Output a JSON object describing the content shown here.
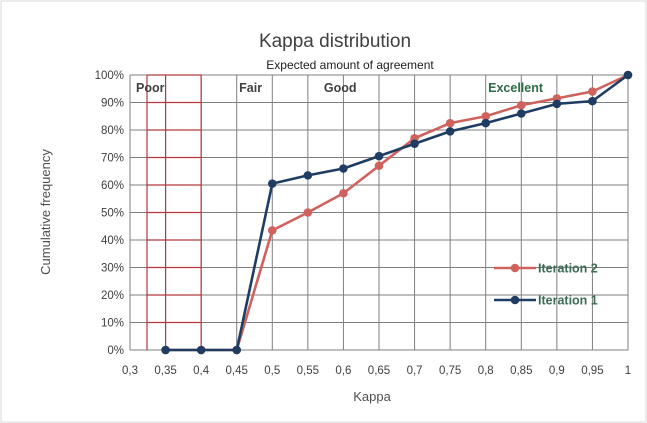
{
  "chart_data": {
    "type": "line",
    "title": "Kappa distribution",
    "subtitle": "Expected amount of agreement",
    "xlabel": "Kappa",
    "ylabel": "Cumulative frequency",
    "xlim": [
      0.3,
      1.0
    ],
    "ylim": [
      0,
      100
    ],
    "x_ticks": [
      "0,3",
      "0,35",
      "0,4",
      "0,45",
      "0,5",
      "0,55",
      "0,6",
      "0,65",
      "0,7",
      "0,75",
      "0,8",
      "0,85",
      "0,9",
      "0,95",
      "1"
    ],
    "y_ticks": [
      "0%",
      "10%",
      "20%",
      "30%",
      "40%",
      "50%",
      "60%",
      "70%",
      "80%",
      "90%",
      "100%"
    ],
    "grid": true,
    "legend_position": "right",
    "zones": [
      {
        "label": "Poor",
        "from": 0.3,
        "to": 0.4,
        "color": "#b5393c"
      },
      {
        "label": "Fair",
        "from": 0.4,
        "to": 0.55,
        "color": "#303030"
      },
      {
        "label": "Good",
        "from": 0.55,
        "to": 0.7,
        "color": "#303030"
      },
      {
        "label": "Excellent",
        "from": 0.7,
        "to": 1.0,
        "color": "#2e6b47"
      }
    ],
    "series": [
      {
        "name": "Iteration 2",
        "color": "#d0625e",
        "x": [
          0.35,
          0.4,
          0.45,
          0.5,
          0.55,
          0.6,
          0.65,
          0.7,
          0.75,
          0.8,
          0.85,
          0.9,
          0.95,
          1.0
        ],
        "y": [
          0,
          0,
          0,
          43.5,
          50,
          57,
          67,
          77,
          82.5,
          85,
          89,
          91.5,
          94,
          100
        ]
      },
      {
        "name": "Iteration 1",
        "color": "#1f3d63",
        "x": [
          0.35,
          0.4,
          0.45,
          0.5,
          0.55,
          0.6,
          0.65,
          0.7,
          0.75,
          0.8,
          0.85,
          0.9,
          0.95,
          1.0
        ],
        "y": [
          0,
          0,
          0,
          60.5,
          63.5,
          66,
          70.5,
          75,
          79.5,
          82.5,
          86,
          89.5,
          90.5,
          100
        ]
      }
    ]
  }
}
